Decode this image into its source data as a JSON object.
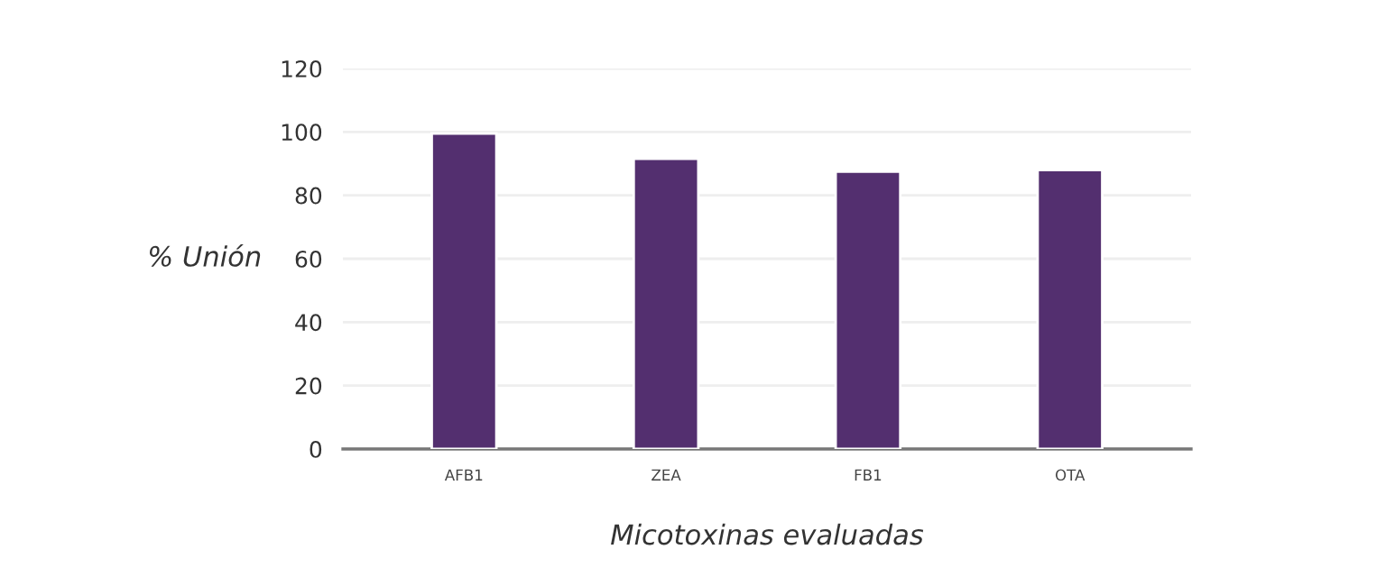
{
  "chart_data": {
    "type": "bar",
    "xlabel": "Micotoxinas evaluadas",
    "ylabel": "% Unión",
    "categories": [
      "AFB1",
      "ZEA",
      "FB1",
      "OTA"
    ],
    "values": [
      99.5,
      91.5,
      87.5,
      88
    ],
    "color": "#532f6f",
    "ylim": [
      0,
      120
    ],
    "yticks": [
      0,
      20,
      40,
      60,
      80,
      100,
      120
    ],
    "grid": "y"
  }
}
